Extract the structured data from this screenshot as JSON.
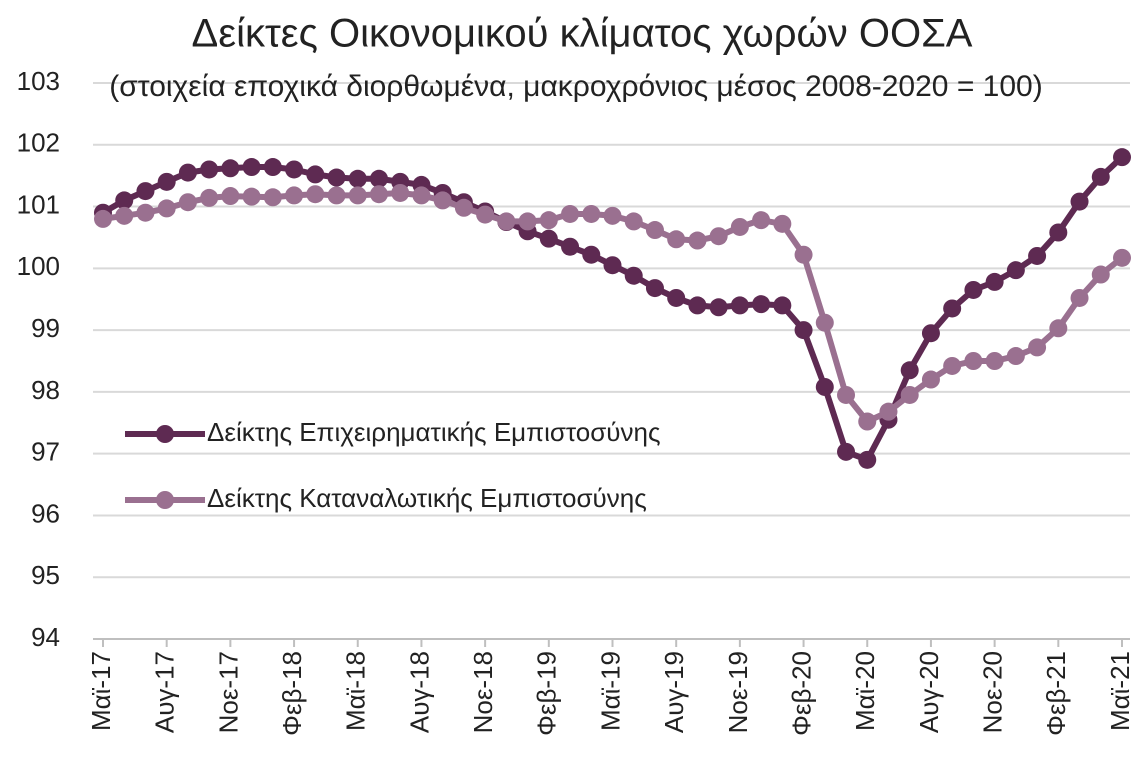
{
  "chart_data": {
    "type": "line",
    "title": "Δείκτες Οικονομικού κλίματος χωρών ΟΟΣΑ",
    "subtitle": "(στοιχεία εποχικά διορθωμένα, μακροχρόνιος μέσος 2008-2020 = 100)",
    "categories": [
      "Μαϊ-17",
      null,
      null,
      "Αυγ-17",
      null,
      null,
      "Νοε-17",
      null,
      null,
      "Φεβ-18",
      null,
      null,
      "Μαϊ-18",
      null,
      null,
      "Αυγ-18",
      null,
      null,
      "Νοε-18",
      null,
      null,
      "Φεβ-19",
      null,
      null,
      "Μαϊ-19",
      null,
      null,
      "Αυγ-19",
      null,
      null,
      "Νοε-19",
      null,
      null,
      "Φεβ-20",
      null,
      null,
      "Μαϊ-20",
      null,
      null,
      "Αυγ-20",
      null,
      null,
      "Νοε-20",
      null,
      null,
      "Φεβ-21",
      null,
      null,
      "Μαϊ-21"
    ],
    "series": [
      {
        "name": "Δείκτης Επιχειρηματικής Εμπιστοσύνης",
        "color": "#5e2a52",
        "values": [
          100.9,
          101.1,
          101.25,
          101.4,
          101.55,
          101.6,
          101.62,
          101.64,
          101.64,
          101.6,
          101.52,
          101.47,
          101.45,
          101.45,
          101.4,
          101.35,
          101.22,
          101.07,
          100.92,
          100.75,
          100.6,
          100.48,
          100.35,
          100.22,
          100.05,
          99.88,
          99.68,
          99.52,
          99.4,
          99.37,
          99.4,
          99.42,
          99.4,
          99.0,
          98.08,
          97.03,
          96.9,
          97.55,
          98.35,
          98.95,
          99.35,
          99.65,
          99.78,
          99.97,
          100.2,
          100.58,
          101.08,
          101.48,
          101.8
        ]
      },
      {
        "name": "Δείκτης Καταναλωτικής Εμπιστοσύνης",
        "color": "#9a7090",
        "values": [
          100.8,
          100.85,
          100.9,
          100.97,
          101.07,
          101.14,
          101.17,
          101.16,
          101.15,
          101.18,
          101.2,
          101.18,
          101.18,
          101.2,
          101.22,
          101.18,
          101.1,
          100.98,
          100.87,
          100.76,
          100.76,
          100.78,
          100.88,
          100.88,
          100.85,
          100.76,
          100.62,
          100.47,
          100.45,
          100.52,
          100.67,
          100.78,
          100.72,
          100.22,
          99.12,
          97.95,
          97.52,
          97.68,
          97.95,
          98.2,
          98.42,
          98.5,
          98.5,
          98.58,
          98.72,
          99.03,
          99.52,
          99.9,
          100.17
        ]
      }
    ],
    "ylim": [
      94,
      103
    ],
    "yticks": [
      94,
      95,
      96,
      97,
      98,
      99,
      100,
      101,
      102,
      103
    ],
    "grid": true,
    "legend": "left"
  }
}
